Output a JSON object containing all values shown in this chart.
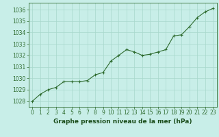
{
  "x": [
    0,
    1,
    2,
    3,
    4,
    5,
    6,
    7,
    8,
    9,
    10,
    11,
    12,
    13,
    14,
    15,
    16,
    17,
    18,
    19,
    20,
    21,
    22,
    23
  ],
  "y": [
    1028.0,
    1028.6,
    1029.0,
    1029.2,
    1029.7,
    1029.7,
    1029.7,
    1029.8,
    1030.3,
    1030.5,
    1031.5,
    1032.0,
    1032.5,
    1032.3,
    1032.0,
    1032.1,
    1032.3,
    1032.5,
    1033.7,
    1033.8,
    1034.5,
    1035.3,
    1035.8,
    1036.1
  ],
  "line_color": "#2d6a2d",
  "marker": "+",
  "marker_color": "#2d6a2d",
  "bg_color": "#c8eee8",
  "grid_color": "#a8d8cc",
  "title": "Graphe pression niveau de la mer (hPa)",
  "title_color": "#1a4d1a",
  "ylim": [
    1027.5,
    1036.6
  ],
  "yticks": [
    1028,
    1029,
    1030,
    1031,
    1032,
    1033,
    1034,
    1035,
    1036
  ],
  "xticks": [
    0,
    1,
    2,
    3,
    4,
    5,
    6,
    7,
    8,
    9,
    10,
    11,
    12,
    13,
    14,
    15,
    16,
    17,
    18,
    19,
    20,
    21,
    22,
    23
  ],
  "tick_color": "#2d6a2d",
  "spine_color": "#2d6a2d",
  "tick_fontsize": 5.5,
  "xlabel_fontsize": 6.5
}
